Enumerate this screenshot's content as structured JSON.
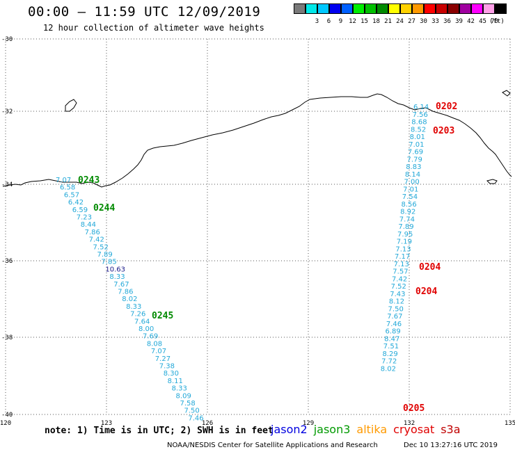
{
  "title": "00:00 — 11:59 UTC 12/09/2019",
  "subtitle": "12 hour collection of altimeter wave heights",
  "legend": {
    "unit": "(ft)",
    "items": [
      {
        "label": "",
        "color": "#7a7a7a"
      },
      {
        "label": "3",
        "color": "#00e8e8"
      },
      {
        "label": "6",
        "color": "#00c8ff"
      },
      {
        "label": "9",
        "color": "#0000f0"
      },
      {
        "label": "12",
        "color": "#0060ff"
      },
      {
        "label": "15",
        "color": "#00ee00"
      },
      {
        "label": "18",
        "color": "#00c000"
      },
      {
        "label": "21",
        "color": "#008a00"
      },
      {
        "label": "24",
        "color": "#ffff00"
      },
      {
        "label": "27",
        "color": "#ffd200"
      },
      {
        "label": "30",
        "color": "#ff9a00"
      },
      {
        "label": "33",
        "color": "#ff0000"
      },
      {
        "label": "36",
        "color": "#c80000"
      },
      {
        "label": "39",
        "color": "#8a0000"
      },
      {
        "label": "42",
        "color": "#a000a0"
      },
      {
        "label": "45",
        "color": "#ff00ff"
      },
      {
        "label": "70",
        "color": "#ffa0e8"
      },
      {
        "label": "",
        "color": "#000000"
      }
    ]
  },
  "axes": {
    "lat_labels": [
      "-30",
      "-32",
      "-34",
      "-36",
      "-38",
      "-40"
    ],
    "lon_labels": [
      "120",
      "123",
      "126",
      "129",
      "132",
      "135"
    ]
  },
  "track_west": [
    {
      "v": "7.07"
    },
    {
      "v": "6.58"
    },
    {
      "v": "6.57"
    },
    {
      "v": "6.42"
    },
    {
      "v": "6.59"
    },
    {
      "v": "7.23"
    },
    {
      "v": "8.44"
    },
    {
      "v": "7.86"
    },
    {
      "v": "7.42"
    },
    {
      "v": "7.52"
    },
    {
      "v": "7.89"
    },
    {
      "v": "7.85"
    },
    {
      "v": "10.63"
    },
    {
      "v": "8.33"
    },
    {
      "v": "7.67"
    },
    {
      "v": "7.86"
    },
    {
      "v": "8.02"
    },
    {
      "v": "8.33"
    },
    {
      "v": "7.26"
    },
    {
      "v": "7.64"
    },
    {
      "v": "8.00"
    },
    {
      "v": "7.69"
    },
    {
      "v": "8.08"
    },
    {
      "v": "7.07"
    },
    {
      "v": "7.27"
    },
    {
      "v": "7.38"
    },
    {
      "v": "8.30"
    },
    {
      "v": "8.11"
    },
    {
      "v": "8.33"
    },
    {
      "v": "8.09"
    },
    {
      "v": "7.58"
    },
    {
      "v": "7.50"
    },
    {
      "v": "7.46"
    }
  ],
  "track_east": [
    {
      "v": "6.14"
    },
    {
      "v": "7.56"
    },
    {
      "v": "8.68"
    },
    {
      "v": "8.52"
    },
    {
      "v": "8.01"
    },
    {
      "v": "7.01"
    },
    {
      "v": "7.69"
    },
    {
      "v": "7.79"
    },
    {
      "v": "8.83"
    },
    {
      "v": "8.14"
    },
    {
      "v": "7.00"
    },
    {
      "v": "7.01"
    },
    {
      "v": "7.54"
    },
    {
      "v": "8.56"
    },
    {
      "v": "8.92"
    },
    {
      "v": "7.74"
    },
    {
      "v": "7.89"
    },
    {
      "v": "7.95"
    },
    {
      "v": "7.19"
    },
    {
      "v": "7.13"
    },
    {
      "v": "7.17"
    },
    {
      "v": "7.13"
    },
    {
      "v": "7.57"
    },
    {
      "v": "7.42"
    },
    {
      "v": "7.52"
    },
    {
      "v": "7.43"
    },
    {
      "v": "8.12"
    },
    {
      "v": "7.50"
    },
    {
      "v": "7.67"
    },
    {
      "v": "7.46"
    },
    {
      "v": "6.89"
    },
    {
      "v": "8.47"
    },
    {
      "v": "7.51"
    },
    {
      "v": "8.29"
    },
    {
      "v": "7.72"
    },
    {
      "v": "8.02"
    }
  ],
  "time_labels": [
    {
      "text": "0243",
      "color": "#008a00"
    },
    {
      "text": "0244",
      "color": "#008a00"
    },
    {
      "text": "0245",
      "color": "#008a00"
    },
    {
      "text": "0202",
      "color": "#e00000"
    },
    {
      "text": "0203",
      "color": "#e00000"
    },
    {
      "text": "0204",
      "color": "#e00000"
    },
    {
      "text": "0204",
      "color": "#e00000"
    },
    {
      "text": "0205",
      "color": "#e00000"
    }
  ],
  "footer": {
    "note": "note: 1) Time is in UTC; 2) SWH is in feet",
    "satellites": [
      {
        "name": "jason2",
        "color": "#0000e0"
      },
      {
        "name": "jason3",
        "color": "#009a00"
      },
      {
        "name": "altika",
        "color": "#ff9a00"
      },
      {
        "name": "cryosat",
        "color": "#e00000"
      },
      {
        "name": "s3a",
        "color": "#c00000"
      }
    ],
    "credit": "NOAA/NESDIS Center for Satellite Applications and Research",
    "stamp": "Dec 10 13:27:16 UTC 2019"
  }
}
